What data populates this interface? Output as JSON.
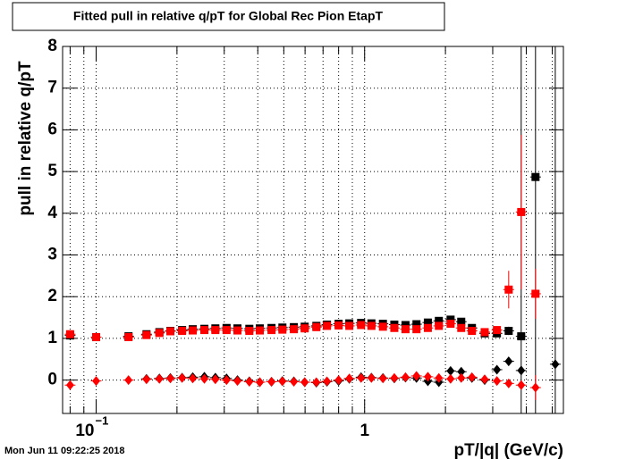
{
  "chart_data": {
    "type": "scatter",
    "title": "Fitted pull in relative q/pT for Global Rec Pion EtapT",
    "x_label": "pT/|q| (GeV/c)",
    "y_label": "pull in relative q/pT",
    "timestamp": "Mon Jun 11 09:22:25 2018",
    "log_x": true,
    "grid": true,
    "xlim": [
      0.075,
      5.5
    ],
    "ylim": [
      -0.8,
      8
    ],
    "xticks": [
      {
        "value": 0.1,
        "label": "10",
        "exponent": "−1"
      },
      1
    ],
    "xminor": [
      0.08,
      0.09,
      0.2,
      0.3,
      0.4,
      0.5,
      0.6,
      0.7,
      0.8,
      0.9,
      2,
      3,
      4,
      5
    ],
    "yticks": [
      0,
      1,
      2,
      3,
      4,
      5,
      6,
      7,
      8
    ],
    "x": [
      0.08,
      0.1,
      0.132,
      0.154,
      0.172,
      0.189,
      0.209,
      0.229,
      0.253,
      0.278,
      0.306,
      0.336,
      0.372,
      0.407,
      0.45,
      0.494,
      0.545,
      0.598,
      0.661,
      0.724,
      0.8,
      0.877,
      0.97,
      1.06,
      1.17,
      1.29,
      1.42,
      1.56,
      1.72,
      1.89,
      2.09,
      2.29,
      2.51,
      2.8,
      3.11,
      3.44,
      3.83,
      4.33,
      5.13
    ],
    "series": [
      {
        "color": "#000000",
        "marker": "square",
        "values": [
          1.07,
          1.03,
          1.05,
          1.1,
          1.15,
          1.18,
          1.2,
          1.22,
          1.23,
          1.24,
          1.25,
          1.24,
          1.23,
          1.24,
          1.25,
          1.26,
          1.27,
          1.28,
          1.3,
          1.33,
          1.35,
          1.36,
          1.37,
          1.36,
          1.35,
          1.33,
          1.32,
          1.34,
          1.38,
          1.42,
          1.45,
          1.4,
          1.25,
          1.12,
          1.12,
          1.18,
          1.05,
          4.87,
          null
        ],
        "errors": [
          null,
          null,
          null,
          null,
          null,
          null,
          null,
          null,
          null,
          null,
          null,
          null,
          null,
          null,
          null,
          null,
          null,
          null,
          null,
          null,
          null,
          null,
          null,
          null,
          null,
          null,
          null,
          null,
          null,
          null,
          null,
          null,
          null,
          null,
          null,
          0.1,
          9,
          9,
          null
        ]
      },
      {
        "color": "#ff0000",
        "marker": "square",
        "values": [
          1.1,
          1.03,
          1.03,
          1.08,
          1.13,
          1.17,
          1.18,
          1.19,
          1.2,
          1.2,
          1.2,
          1.19,
          1.18,
          1.19,
          1.2,
          1.21,
          1.22,
          1.24,
          1.27,
          1.3,
          1.31,
          1.3,
          1.32,
          1.3,
          1.28,
          1.25,
          1.22,
          1.22,
          1.25,
          1.3,
          1.35,
          1.25,
          1.18,
          1.15,
          1.2,
          2.17,
          4.03,
          2.07,
          null
        ],
        "errors": [
          null,
          null,
          null,
          null,
          null,
          null,
          null,
          null,
          null,
          null,
          null,
          null,
          null,
          null,
          null,
          null,
          null,
          null,
          null,
          null,
          null,
          null,
          null,
          null,
          null,
          null,
          null,
          null,
          null,
          null,
          null,
          null,
          null,
          null,
          null,
          0.45,
          1.85,
          0.6,
          null
        ]
      },
      {
        "color": "#000000",
        "marker": "diamond",
        "values": [
          null,
          null,
          null,
          0.03,
          0.04,
          0.05,
          0.06,
          0.07,
          0.08,
          0.06,
          0.04,
          0.0,
          -0.03,
          -0.05,
          -0.04,
          -0.02,
          -0.03,
          -0.05,
          -0.06,
          -0.04,
          -0.02,
          0.03,
          0.07,
          0.06,
          0.05,
          0.04,
          0.06,
          0.05,
          -0.03,
          -0.05,
          0.22,
          0.2,
          0.05,
          0.0,
          0.25,
          0.45,
          0.23,
          null,
          0.38
        ],
        "errors": [
          null,
          null,
          null,
          null,
          null,
          null,
          null,
          null,
          null,
          null,
          null,
          null,
          null,
          null,
          null,
          null,
          null,
          null,
          null,
          null,
          null,
          null,
          null,
          null,
          null,
          null,
          null,
          null,
          null,
          null,
          null,
          null,
          null,
          null,
          null,
          0.1,
          null,
          null,
          9
        ]
      },
      {
        "color": "#ff0000",
        "marker": "diamond",
        "values": [
          -0.12,
          -0.02,
          0.0,
          0.02,
          0.03,
          0.04,
          0.05,
          0.04,
          0.03,
          0.02,
          0.0,
          -0.02,
          -0.04,
          -0.05,
          -0.04,
          -0.03,
          -0.04,
          -0.05,
          -0.05,
          -0.03,
          0.0,
          0.04,
          0.05,
          0.05,
          0.04,
          0.05,
          0.07,
          0.1,
          0.08,
          0.05,
          0.03,
          0.05,
          0.07,
          0.02,
          -0.02,
          -0.08,
          -0.12,
          -0.18,
          null
        ],
        "errors": [
          null,
          null,
          null,
          null,
          null,
          null,
          null,
          null,
          null,
          null,
          null,
          null,
          null,
          null,
          null,
          null,
          null,
          null,
          null,
          null,
          null,
          null,
          null,
          null,
          null,
          null,
          null,
          null,
          null,
          null,
          null,
          null,
          null,
          null,
          null,
          null,
          null,
          0.3,
          null
        ]
      }
    ]
  }
}
